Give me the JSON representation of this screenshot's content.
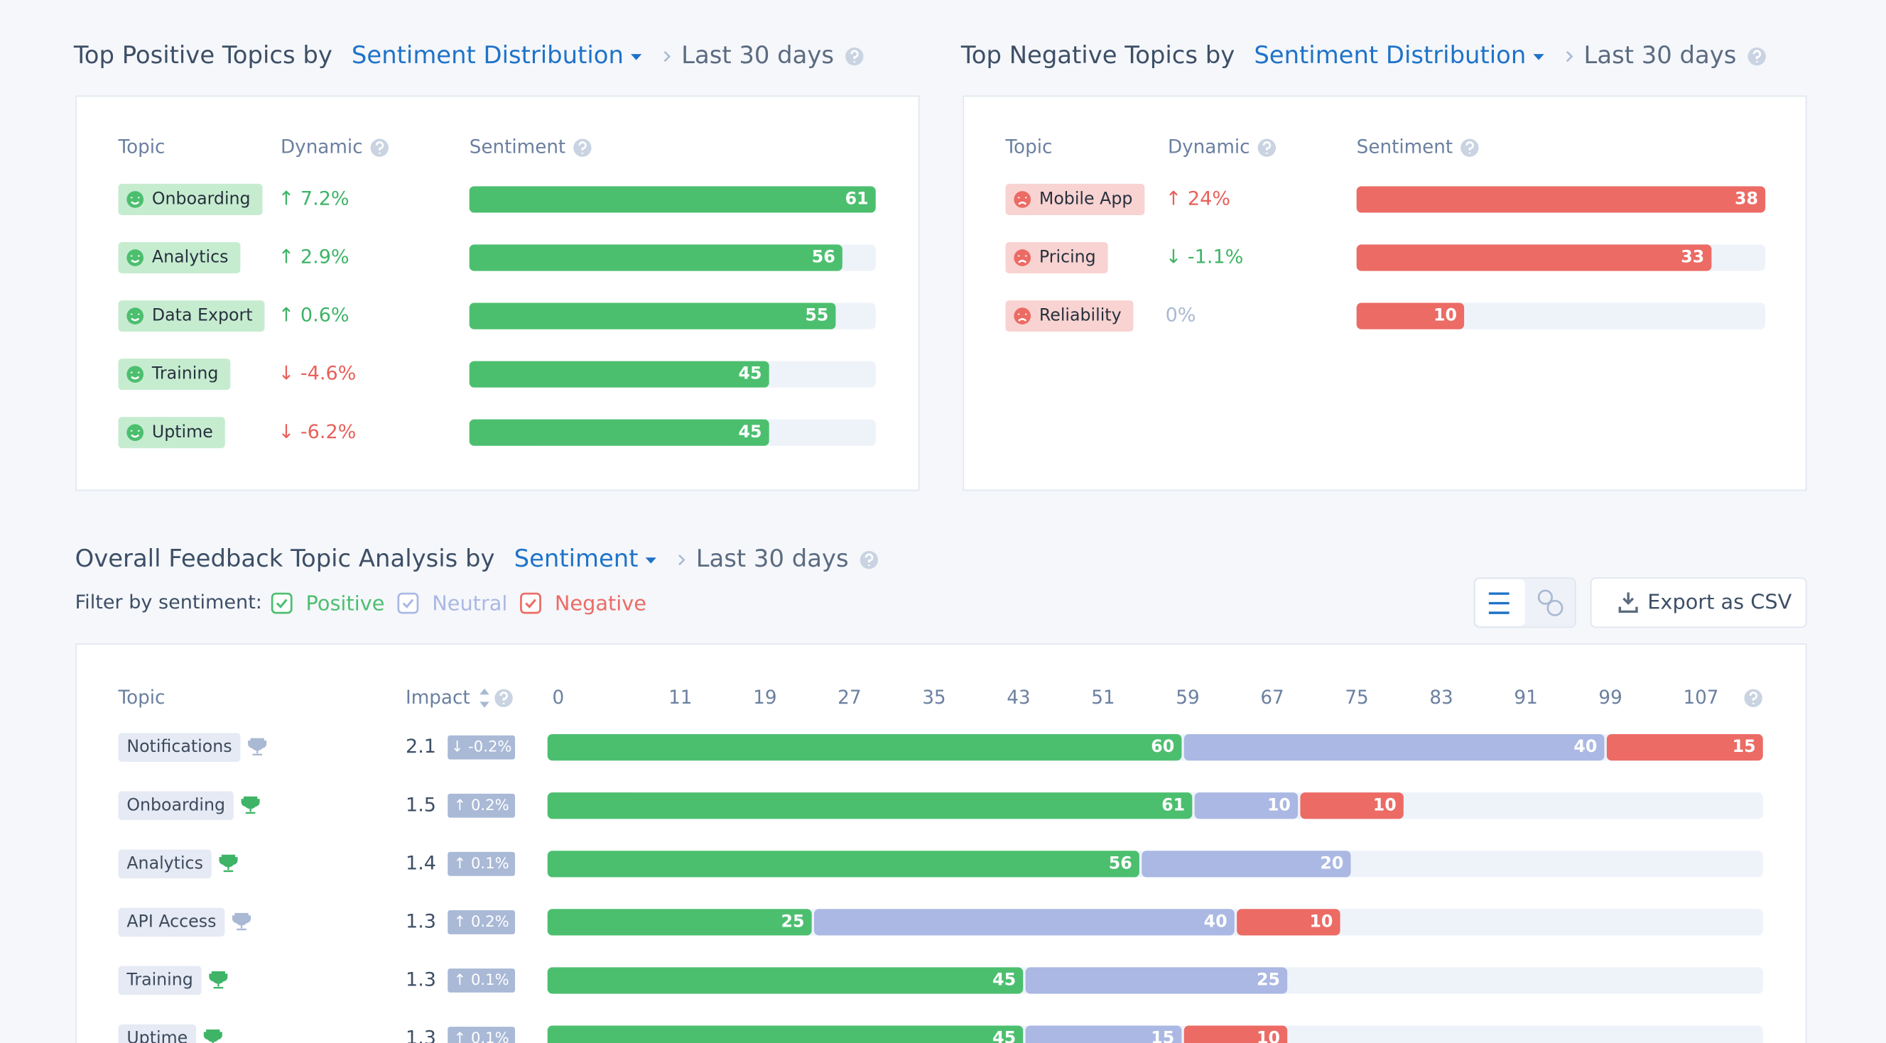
{
  "positive_panel": {
    "title": "Top Positive Topics by",
    "metric": "Sentiment Distribution",
    "period": "Last 30 days",
    "columns": [
      "Topic",
      "Dynamic",
      "Sentiment"
    ],
    "color": "#4cbf6f",
    "pill_color": "#c6ecd0",
    "rows": [
      {
        "topic": "Onboarding",
        "dynamic": "↑ 7.2%",
        "dynamic_color": "#3fb467",
        "value": 61
      },
      {
        "topic": "Analytics",
        "dynamic": "↑ 2.9%",
        "dynamic_color": "#3fb467",
        "value": 56
      },
      {
        "topic": "Data Export",
        "dynamic": "↑ 0.6%",
        "dynamic_color": "#3fb467",
        "value": 55
      },
      {
        "topic": "Training",
        "dynamic": "↓ -4.6%",
        "dynamic_color": "#e9605a",
        "value": 45
      },
      {
        "topic": "Uptime",
        "dynamic": "↓ -6.2%",
        "dynamic_color": "#e9605a",
        "value": 45
      }
    ]
  },
  "negative_panel": {
    "title": "Top Negative Topics by",
    "metric": "Sentiment Distribution",
    "period": "Last 30 days",
    "columns": [
      "Topic",
      "Dynamic",
      "Sentiment"
    ],
    "color": "#ec6b65",
    "pill_color": "#f8d3d1",
    "rows": [
      {
        "topic": "Mobile App",
        "dynamic": "↑ 24%",
        "dynamic_color": "#e9605a",
        "value": 38
      },
      {
        "topic": "Pricing",
        "dynamic": "↓ -1.1%",
        "dynamic_color": "#3fb467",
        "value": 33
      },
      {
        "topic": "Reliability",
        "dynamic": "0%",
        "dynamic_color": "#a9b9d3",
        "value": 10
      }
    ]
  },
  "overall": {
    "title": "Overall Feedback Topic Analysis by",
    "metric": "Sentiment",
    "period": "Last 30 days",
    "filter_label": "Filter by sentiment:",
    "export": "Export as CSV",
    "columns": [
      "Topic",
      "Impact"
    ],
    "series": [
      {
        "name": "Positive",
        "color": "#4cbf6f"
      },
      {
        "name": "Neutral",
        "color": "#aab8e3"
      },
      {
        "name": "Negative",
        "color": "#ec6b65"
      }
    ],
    "xlim": [
      0,
      115
    ],
    "xticks": [
      0,
      11,
      19,
      27,
      35,
      43,
      51,
      59,
      67,
      75,
      83,
      91,
      99,
      107
    ],
    "rows": [
      {
        "topic": "Notifications",
        "trophy_color": "#a9b9d3",
        "impact": 2.1,
        "change": "↓ -0.2%",
        "values": [
          60,
          40,
          15
        ]
      },
      {
        "topic": "Onboarding",
        "trophy_color": "#3fb467",
        "impact": 1.5,
        "change": "↑ 0.2%",
        "values": [
          61,
          10,
          10
        ]
      },
      {
        "topic": "Analytics",
        "trophy_color": "#3fb467",
        "impact": 1.4,
        "change": "↑ 0.1%",
        "values": [
          56,
          20,
          null
        ]
      },
      {
        "topic": "API Access",
        "trophy_color": "#a9b9d3",
        "impact": 1.3,
        "change": "↑ 0.2%",
        "values": [
          25,
          40,
          10
        ]
      },
      {
        "topic": "Training",
        "trophy_color": "#3fb467",
        "impact": 1.3,
        "change": "↑ 0.1%",
        "values": [
          45,
          25,
          null
        ]
      },
      {
        "topic": "Uptime",
        "trophy_color": "#3fb467",
        "impact": 1.3,
        "change": "↑ 0.1%",
        "values": [
          45,
          15,
          10
        ]
      }
    ]
  }
}
